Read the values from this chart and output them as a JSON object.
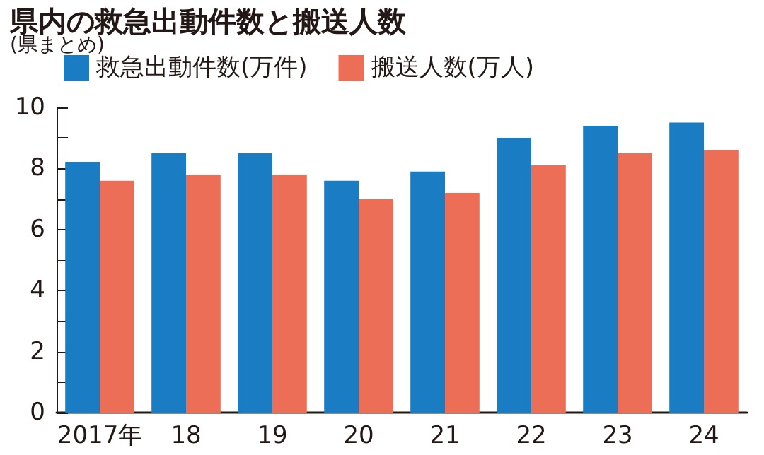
{
  "chart_data": {
    "type": "bar",
    "title": "県内の救急出動件数と搬送人数",
    "subtitle": "(県まとめ)",
    "categories": [
      "2017年",
      "18",
      "19",
      "20",
      "21",
      "22",
      "23",
      "24"
    ],
    "series": [
      {
        "name": "救急出動件数(万件)",
        "color": "#1a7dc4",
        "values": [
          8.2,
          8.5,
          8.5,
          7.6,
          7.9,
          9.0,
          9.4,
          9.5
        ]
      },
      {
        "name": "搬送人数(万人)",
        "color": "#ec6e57",
        "values": [
          7.6,
          7.8,
          7.8,
          7.0,
          7.2,
          8.1,
          8.5,
          8.6
        ]
      }
    ],
    "ylim": [
      0,
      10
    ],
    "yticks": [
      0,
      {
        "value": 1,
        "label": null
      },
      2,
      {
        "value": 3,
        "label": null
      },
      4,
      {
        "value": 5,
        "label": null
      },
      6,
      {
        "value": 7,
        "label": null
      },
      8,
      {
        "value": 9,
        "label": null
      },
      10
    ],
    "grid": false,
    "legend": "top"
  }
}
